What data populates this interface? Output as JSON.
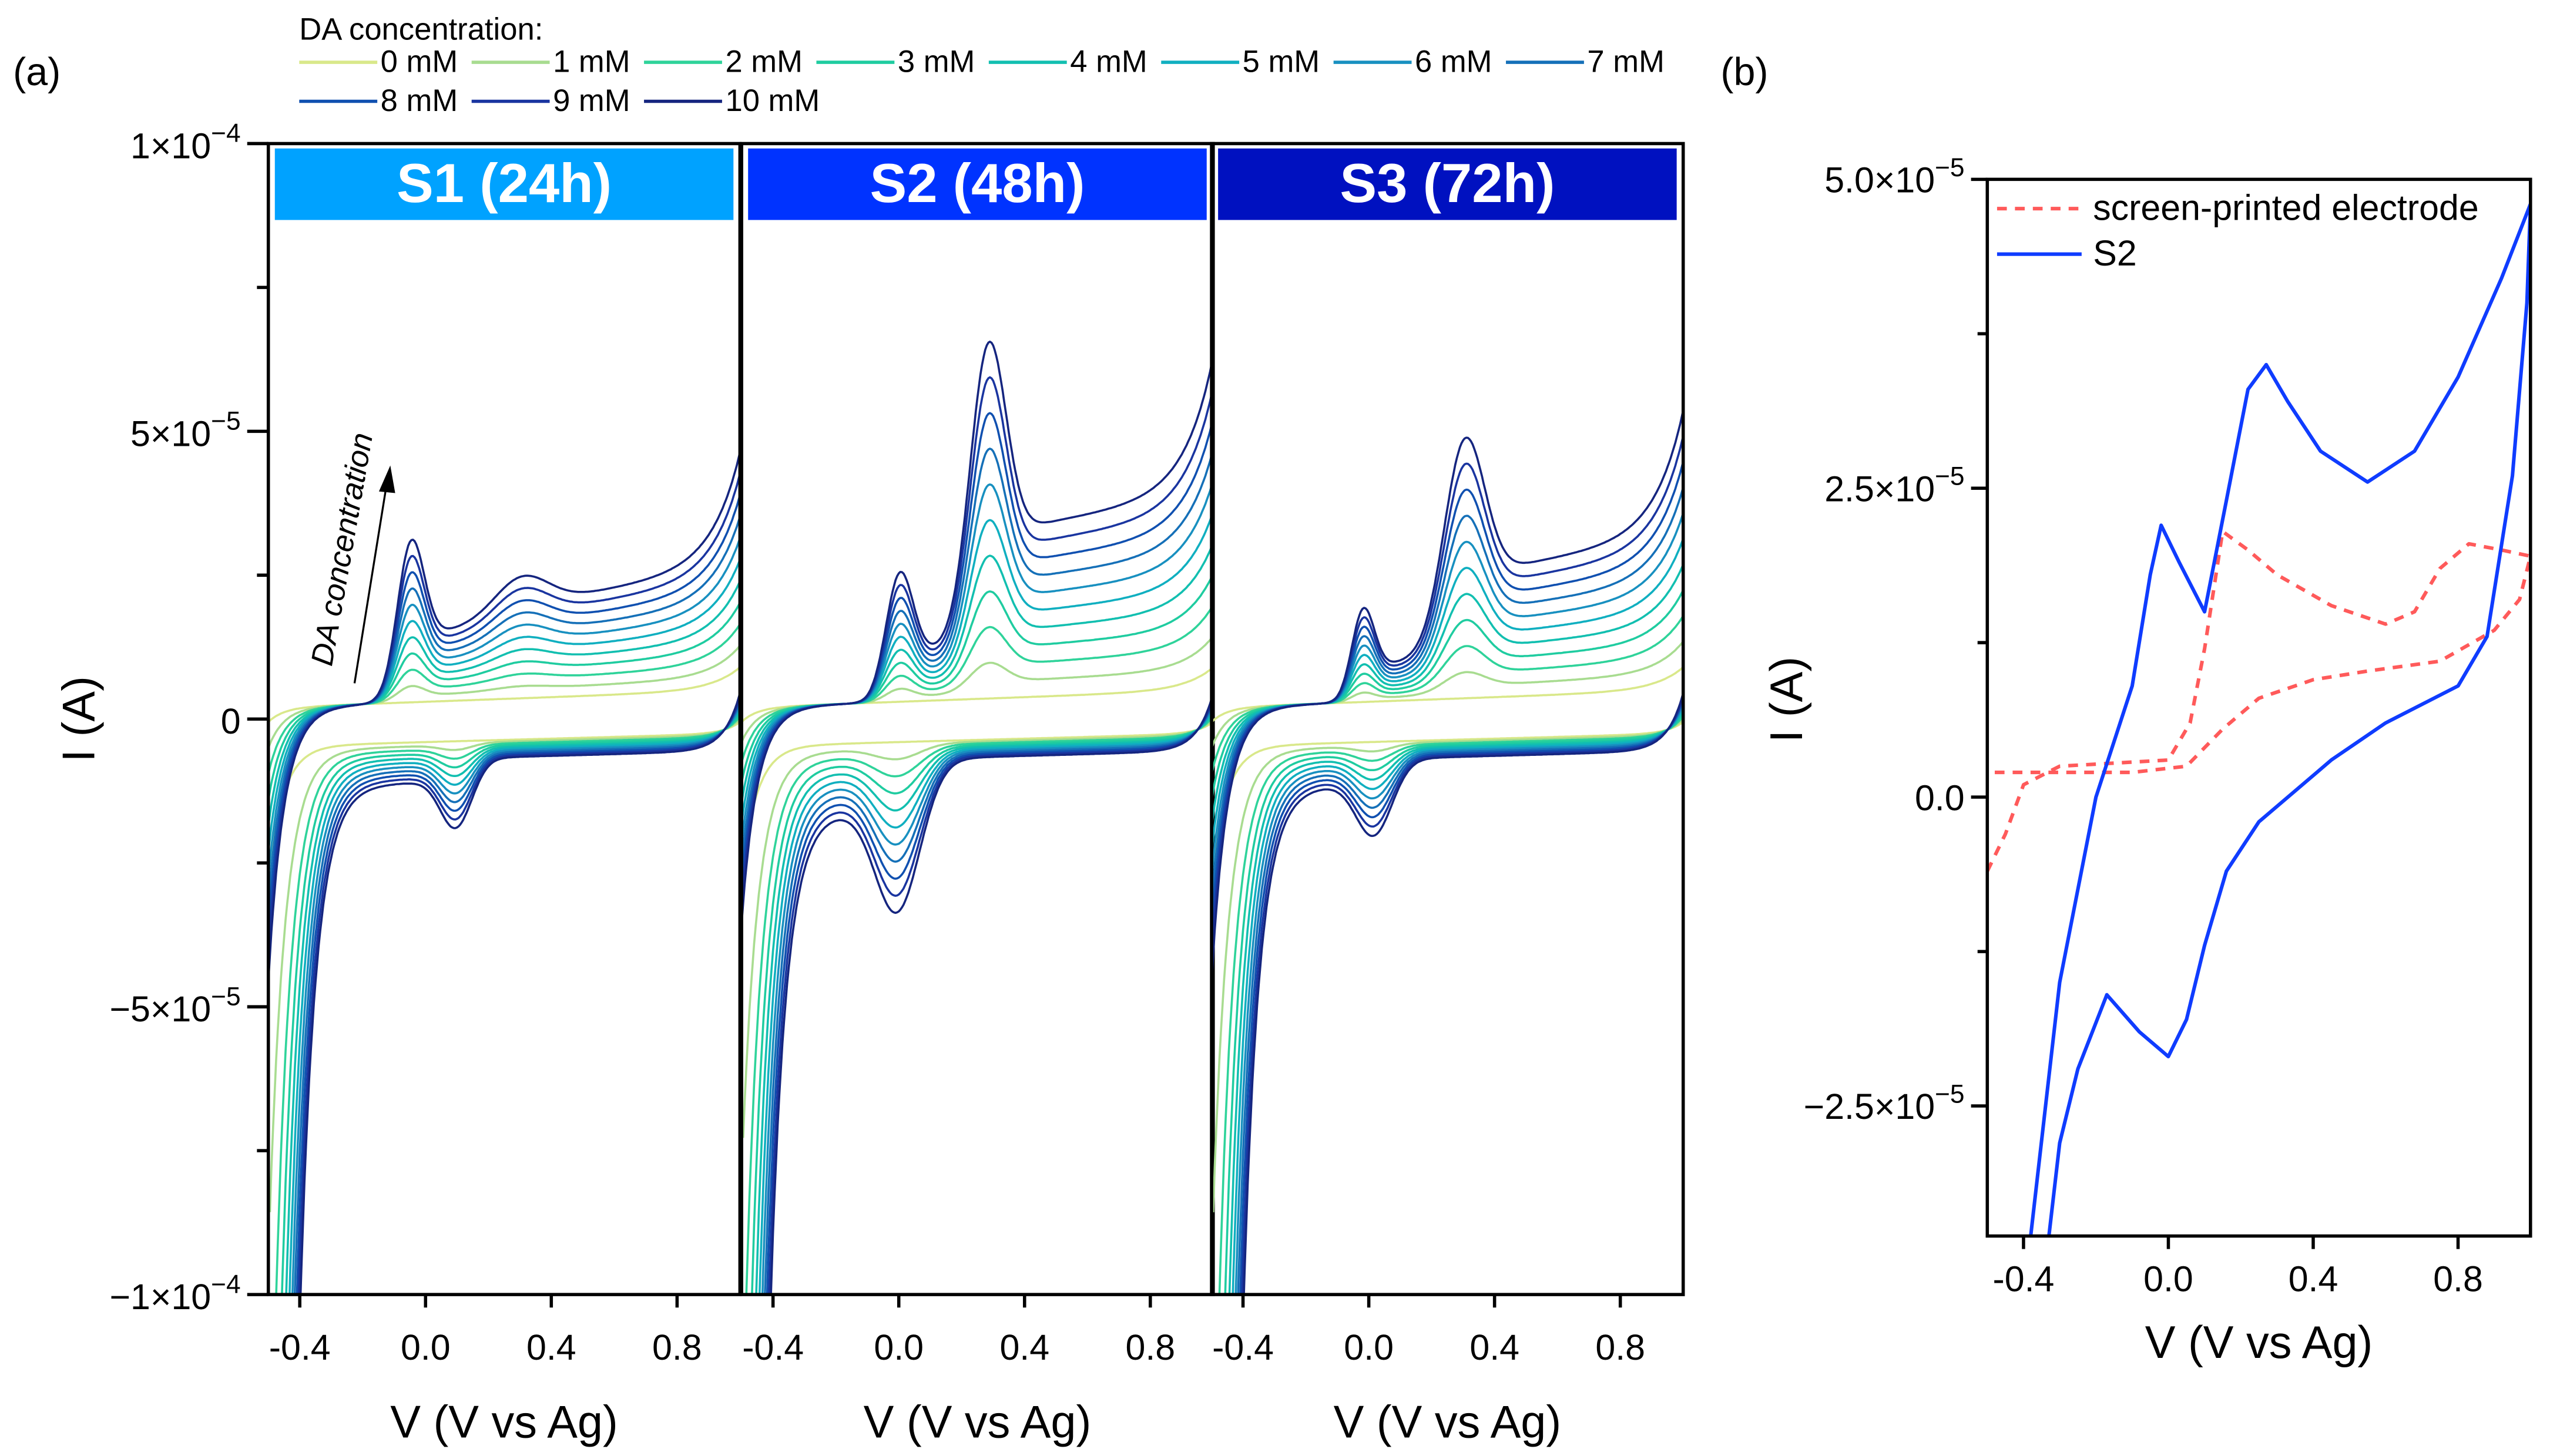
{
  "chart_data": [
    {
      "type": "line",
      "panel_label": "(a)",
      "legend_title": "DA concentration:",
      "legend_placement": "top",
      "concentrations": [
        "0 mM",
        "1 mM",
        "2 mM",
        "3 mM",
        "4 mM",
        "5 mM",
        "6 mM",
        "7 mM",
        "8 mM",
        "9 mM",
        "10 mM"
      ],
      "colors": [
        "#d9e88a",
        "#a8dc90",
        "#2fd39a",
        "#1fcca0",
        "#12bfb0",
        "#10afc0",
        "#1890c0",
        "#1570b8",
        "#1050b0",
        "#1a35a0",
        "#15257f"
      ],
      "xlabel": "V (V vs Ag)",
      "ylabel": "I (A)",
      "xlim": [
        -0.5,
        1.0
      ],
      "ylim": [
        -0.0001,
        0.0001
      ],
      "xticks": [
        "-0.4",
        "0.0",
        "0.4",
        "0.8"
      ],
      "xtick_values": [
        -0.4,
        0.0,
        0.4,
        0.8
      ],
      "yticks": [
        {
          "value": 0.0001,
          "mant": "1×10",
          "exp": "−4"
        },
        {
          "value": 5e-05,
          "mant": "5×10",
          "exp": "−5"
        },
        {
          "value": 0,
          "mant": "0",
          "exp": ""
        },
        {
          "value": -5e-05,
          "mant": "−5×10",
          "exp": "−5"
        },
        {
          "value": -0.0001,
          "mant": "−1×10",
          "exp": "−4"
        }
      ],
      "annotation": "DA concentration",
      "panels": [
        {
          "title": "S1 (24h)",
          "color": "#00a2ff",
          "anodic_peaks": [
            {
              "V": -0.05,
              "I_10mM": 2.2e-05,
              "width": 0.06,
              "tail": 0.5
            },
            {
              "V": 0.3,
              "I_10mM": 6e-06,
              "width": 0.12,
              "tail": 0.4
            }
          ],
          "cathodic_peaks": [
            {
              "V": 0.1,
              "I_10mM": 1e-05,
              "width": 0.07
            }
          ],
          "edge_anodic_10mM": 1.6e-05,
          "edge_cathodic_10mM": 9e-05
        },
        {
          "title": "S2 (48h)",
          "color": "#0033ff",
          "anodic_peaks": [
            {
              "V": 0.0,
              "I_10mM": 1.8e-05,
              "width": 0.06,
              "tail": 0.4
            },
            {
              "V": 0.28,
              "I_10mM": 4.2e-05,
              "width": 0.08,
              "tail": 0.45
            }
          ],
          "cathodic_peaks": [
            {
              "V": 0.0,
              "I_10mM": 2.2e-05,
              "width": 0.1
            }
          ],
          "edge_anodic_10mM": 2e-05,
          "edge_cathodic_10mM": 7e-05
        },
        {
          "title": "S3 (72h)",
          "color": "#0011c0",
          "anodic_peaks": [
            {
              "V": -0.02,
              "I_10mM": 1.3e-05,
              "width": 0.05,
              "tail": 0.4
            },
            {
              "V": 0.3,
              "I_10mM": 3e-05,
              "width": 0.09,
              "tail": 0.45
            }
          ],
          "cathodic_peaks": [
            {
              "V": 0.02,
              "I_10mM": 1.1e-05,
              "width": 0.08
            }
          ],
          "edge_anodic_10mM": 1.8e-05,
          "edge_cathodic_10mM": 9e-05
        }
      ]
    },
    {
      "type": "line",
      "panel_label": "(b)",
      "xlabel": "V (V vs Ag)",
      "ylabel": "I (A)",
      "xlim": [
        -0.5,
        1.0
      ],
      "ylim": [
        -3.55e-05,
        5e-05
      ],
      "xticks": [
        "-0.4",
        "0.0",
        "0.4",
        "0.8"
      ],
      "xtick_values": [
        -0.4,
        0.0,
        0.4,
        0.8
      ],
      "yticks": [
        {
          "value": 5e-05,
          "mant": "5.0×10",
          "exp": "−5"
        },
        {
          "value": 2.5e-05,
          "mant": "2.5×10",
          "exp": "−5"
        },
        {
          "value": 0,
          "mant": "0.0",
          "exp": ""
        },
        {
          "value": -2.5e-05,
          "mant": "−2.5×10",
          "exp": "−5"
        }
      ],
      "legend_placement": "top-left",
      "series": [
        {
          "name": "screen-printed electrode",
          "color": "#ff5a5a",
          "dash": true,
          "points": [
            [
              -0.5,
              -6e-06
            ],
            [
              -0.45,
              -3e-06
            ],
            [
              -0.4,
              1e-06
            ],
            [
              -0.3,
              2.5e-06
            ],
            [
              0.0,
              3e-06
            ],
            [
              0.06,
              6e-06
            ],
            [
              0.1,
              1.2e-05
            ],
            [
              0.15,
              2.15e-05
            ],
            [
              0.22,
              2e-05
            ],
            [
              0.3,
              1.8e-05
            ],
            [
              0.45,
              1.55e-05
            ],
            [
              0.6,
              1.4e-05
            ],
            [
              0.68,
              1.5e-05
            ],
            [
              0.75,
              1.85e-05
            ],
            [
              0.83,
              2.05e-05
            ],
            [
              0.92,
              2e-05
            ],
            [
              1.0,
              1.95e-05
            ],
            [
              0.97,
              1.6e-05
            ],
            [
              0.9,
              1.35e-05
            ],
            [
              0.75,
              1.1e-05
            ],
            [
              0.55,
              1.02e-05
            ],
            [
              0.4,
              9.5e-06
            ],
            [
              0.25,
              8e-06
            ],
            [
              0.15,
              5.5e-06
            ],
            [
              0.05,
              2.5e-06
            ],
            [
              -0.1,
              2e-06
            ],
            [
              -0.3,
              2e-06
            ],
            [
              -0.5,
              2e-06
            ]
          ]
        },
        {
          "name": "S2",
          "color": "#0f3cff",
          "dash": false,
          "points": [
            [
              -0.38,
              -3.55e-05
            ],
            [
              -0.3,
              -1.5e-05
            ],
            [
              -0.2,
              0.0
            ],
            [
              -0.1,
              9e-06
            ],
            [
              -0.05,
              1.8e-05
            ],
            [
              -0.02,
              2.2e-05
            ],
            [
              0.03,
              1.9e-05
            ],
            [
              0.1,
              1.5e-05
            ],
            [
              0.16,
              2.4e-05
            ],
            [
              0.22,
              3.3e-05
            ],
            [
              0.27,
              3.5e-05
            ],
            [
              0.33,
              3.2e-05
            ],
            [
              0.42,
              2.8e-05
            ],
            [
              0.55,
              2.55e-05
            ],
            [
              0.68,
              2.8e-05
            ],
            [
              0.8,
              3.4e-05
            ],
            [
              0.92,
              4.2e-05
            ],
            [
              1.0,
              4.8e-05
            ],
            [
              0.99,
              4e-05
            ],
            [
              0.95,
              2.6e-05
            ],
            [
              0.88,
              1.3e-05
            ],
            [
              0.8,
              9e-06
            ],
            [
              0.6,
              6e-06
            ],
            [
              0.45,
              3e-06
            ],
            [
              0.35,
              5e-07
            ],
            [
              0.25,
              -2e-06
            ],
            [
              0.16,
              -6e-06
            ],
            [
              0.1,
              -1.2e-05
            ],
            [
              0.05,
              -1.8e-05
            ],
            [
              0.0,
              -2.1e-05
            ],
            [
              -0.08,
              -1.9e-05
            ],
            [
              -0.17,
              -1.6e-05
            ],
            [
              -0.25,
              -2.2e-05
            ],
            [
              -0.3,
              -2.8e-05
            ],
            [
              -0.33,
              -3.55e-05
            ]
          ]
        }
      ]
    }
  ]
}
